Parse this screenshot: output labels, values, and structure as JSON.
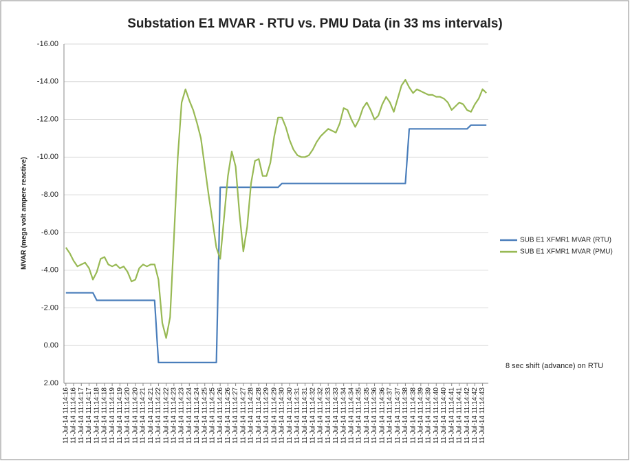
{
  "chart_data": {
    "type": "line",
    "title": "Substation E1 MVAR - RTU vs. PMU Data (in 33 ms intervals)",
    "y_label": "MVAR (mega volt ampere reactive)",
    "annotation": "8 sec shift (advance) on RTU",
    "y_reversed": true,
    "grid": true,
    "legend": "right",
    "ylim": [
      -16,
      2
    ],
    "yticks": [
      {
        "value": -16,
        "label": "-16.00"
      },
      {
        "value": -14,
        "label": "-14.00"
      },
      {
        "value": -12,
        "label": "-12.00"
      },
      {
        "value": -10,
        "label": "-10.00"
      },
      {
        "value": -8,
        "label": "-8.00"
      },
      {
        "value": -6,
        "label": "-6.00"
      },
      {
        "value": -4,
        "label": "-4.00"
      },
      {
        "value": -2,
        "label": "-2.00"
      },
      {
        "value": 0,
        "label": "0.00"
      },
      {
        "value": 2,
        "label": "2.00"
      }
    ],
    "categories": [
      "11-Jul-14 11:14:16",
      null,
      "11-Jul-14 11:14:16",
      null,
      "11-Jul-14 11:14:17",
      null,
      "11-Jul-14 11:14:17",
      null,
      "11-Jul-14 11:14:18",
      null,
      "11-Jul-14 11:14:18",
      null,
      "11-Jul-14 11:14:19",
      null,
      "11-Jul-14 11:14:19",
      null,
      "11-Jul-14 11:14:20",
      null,
      "11-Jul-14 11:14:20",
      null,
      "11-Jul-14 11:14:21",
      null,
      "11-Jul-14 11:14:21",
      null,
      "11-Jul-14 11:14:22",
      null,
      "11-Jul-14 11:14:22",
      null,
      "11-Jul-14 11:14:23",
      null,
      "11-Jul-14 11:14:23",
      null,
      "11-Jul-14 11:14:24",
      null,
      "11-Jul-14 11:14:24",
      null,
      "11-Jul-14 11:14:25",
      null,
      "11-Jul-14 11:14:25",
      null,
      "11-Jul-14 11:14:26",
      null,
      "11-Jul-14 11:14:26",
      null,
      "11-Jul-14 11:14:27",
      null,
      "11-Jul-14 11:14:27",
      null,
      "11-Jul-14 11:14:28",
      null,
      "11-Jul-14 11:14:28",
      null,
      "11-Jul-14 11:14:29",
      null,
      "11-Jul-14 11:14:29",
      null,
      "11-Jul-14 11:14:30",
      null,
      "11-Jul-14 11:14:30",
      null,
      "11-Jul-14 11:14:31",
      null,
      "11-Jul-14 11:14:31",
      null,
      "11-Jul-14 11:14:32",
      null,
      "11-Jul-14 11:14:32",
      null,
      "11-Jul-14 11:14:33",
      null,
      "11-Jul-14 11:14:33",
      null,
      "11-Jul-14 11:14:34",
      null,
      "11-Jul-14 11:14:34",
      null,
      "11-Jul-14 11:14:35",
      null,
      "11-Jul-14 11:14:35",
      null,
      "11-Jul-14 11:14:36",
      null,
      "11-Jul-14 11:14:36",
      null,
      "11-Jul-14 11:14:37",
      null,
      "11-Jul-14 11:14:37",
      null,
      "11-Jul-14 11:14:38",
      null,
      "11-Jul-14 11:14:38",
      null,
      "11-Jul-14 11:14:39",
      null,
      "11-Jul-14 11:14:39",
      null,
      "11-Jul-14 11:14:40",
      null,
      "11-Jul-14 11:14:40",
      null,
      "11-Jul-14 11:14:41",
      null,
      "11-Jul-14 11:14:41",
      null,
      "11-Jul-14 11:14:42",
      null,
      "11-Jul-14 11:14:42",
      null,
      "11-Jul-14 11:14:43",
      null
    ],
    "series": [
      {
        "name": "SUB E1 XFMR1 MVAR (RTU)",
        "color": "#4a7ebb",
        "values": [
          -2.8,
          -2.8,
          -2.8,
          -2.8,
          -2.8,
          -2.8,
          -2.8,
          -2.8,
          -2.4,
          -2.4,
          -2.4,
          -2.4,
          -2.4,
          -2.4,
          -2.4,
          -2.4,
          -2.4,
          -2.4,
          -2.4,
          -2.4,
          -2.4,
          -2.4,
          -2.4,
          -2.4,
          0.9,
          0.9,
          0.9,
          0.9,
          0.9,
          0.9,
          0.9,
          0.9,
          0.9,
          0.9,
          0.9,
          0.9,
          0.9,
          0.9,
          0.9,
          0.9,
          -8.4,
          -8.4,
          -8.4,
          -8.4,
          -8.4,
          -8.4,
          -8.4,
          -8.4,
          -8.4,
          -8.4,
          -8.4,
          -8.4,
          -8.4,
          -8.4,
          -8.4,
          -8.4,
          -8.6,
          -8.6,
          -8.6,
          -8.6,
          -8.6,
          -8.6,
          -8.6,
          -8.6,
          -8.6,
          -8.6,
          -8.6,
          -8.6,
          -8.6,
          -8.6,
          -8.6,
          -8.6,
          -8.6,
          -8.6,
          -8.6,
          -8.6,
          -8.6,
          -8.6,
          -8.6,
          -8.6,
          -8.6,
          -8.6,
          -8.6,
          -8.6,
          -8.6,
          -8.6,
          -8.6,
          -8.6,
          -8.6,
          -11.5,
          -11.5,
          -11.5,
          -11.5,
          -11.5,
          -11.5,
          -11.5,
          -11.5,
          -11.5,
          -11.5,
          -11.5,
          -11.5,
          -11.5,
          -11.5,
          -11.5,
          -11.5,
          -11.7,
          -11.7,
          -11.7,
          -11.7,
          -11.7
        ]
      },
      {
        "name": "SUB E1 XFMR1 MVAR (PMU)",
        "color": "#98b954",
        "values": [
          -5.2,
          -4.9,
          -4.5,
          -4.2,
          -4.3,
          -4.4,
          -4.1,
          -3.5,
          -3.9,
          -4.6,
          -4.7,
          -4.3,
          -4.2,
          -4.3,
          -4.1,
          -4.2,
          -3.9,
          -3.4,
          -3.5,
          -4.1,
          -4.3,
          -4.2,
          -4.3,
          -4.3,
          -3.5,
          -1.2,
          -0.4,
          -1.5,
          -5.7,
          -10.0,
          -12.9,
          -13.6,
          -13.0,
          -12.5,
          -11.8,
          -11.0,
          -9.5,
          -8.0,
          -6.6,
          -5.2,
          -4.6,
          -6.8,
          -9.0,
          -10.3,
          -9.5,
          -7.0,
          -5.0,
          -6.3,
          -8.6,
          -9.8,
          -9.9,
          -9.0,
          -9.0,
          -9.7,
          -11.1,
          -12.1,
          -12.1,
          -11.6,
          -10.9,
          -10.4,
          -10.1,
          -10.0,
          -10.0,
          -10.1,
          -10.4,
          -10.8,
          -11.1,
          -11.3,
          -11.5,
          -11.4,
          -11.3,
          -11.8,
          -12.6,
          -12.5,
          -12.0,
          -11.6,
          -12.0,
          -12.6,
          -12.9,
          -12.5,
          -12.0,
          -12.2,
          -12.8,
          -13.2,
          -12.9,
          -12.4,
          -13.1,
          -13.8,
          -14.1,
          -13.7,
          -13.4,
          -13.6,
          -13.5,
          -13.4,
          -13.3,
          -13.3,
          -13.2,
          -13.2,
          -13.1,
          -12.9,
          -12.5,
          -12.7,
          -12.9,
          -12.8,
          -12.5,
          -12.4,
          -12.8,
          -13.1,
          -13.6,
          -13.4
        ]
      }
    ]
  }
}
